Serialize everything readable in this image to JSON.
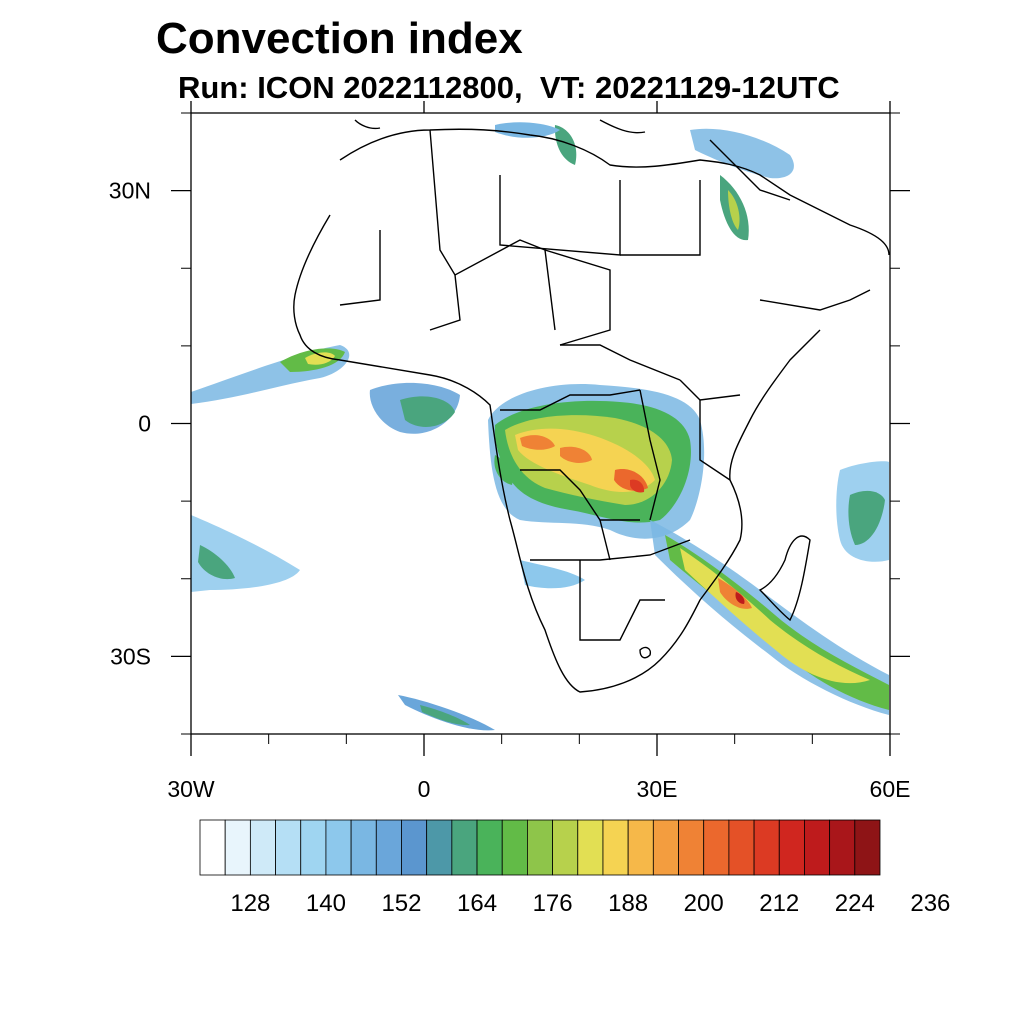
{
  "title": "Convection index",
  "subtitle": "Run: ICON 2022112800,  VT: 20221129-12UTC",
  "map": {
    "lon_range": [
      -30,
      60
    ],
    "lat_range": [
      -40,
      40
    ],
    "lat_labels": [
      {
        "lat": 30,
        "label": "30N"
      },
      {
        "lat": 0,
        "label": "0"
      },
      {
        "lat": -30,
        "label": "30S"
      }
    ],
    "lon_labels": [
      {
        "lon": -30,
        "label": "30W"
      },
      {
        "lon": 0,
        "label": "0"
      },
      {
        "lon": 30,
        "label": "30E"
      },
      {
        "lon": 60,
        "label": "60E"
      }
    ],
    "minor_lat_ticks": [
      40,
      20,
      10,
      -10,
      -20,
      -40
    ],
    "minor_lon_ticks": [
      -20,
      -10,
      10,
      20,
      40,
      50
    ]
  },
  "colorbar": {
    "labels": [
      "128",
      "140",
      "152",
      "164",
      "176",
      "188",
      "200",
      "212",
      "224",
      "236"
    ],
    "colors": [
      "#ffffff",
      "#e8f5fc",
      "#cfeaf8",
      "#b5dff5",
      "#9fd5f1",
      "#8dc8ec",
      "#7ab7e3",
      "#6aa6da",
      "#5b96cf",
      "#4d98a8",
      "#4aa57e",
      "#4ab35a",
      "#62bb47",
      "#8ec54a",
      "#b7d14c",
      "#e2df53",
      "#f5d352",
      "#f6b849",
      "#f39d3f",
      "#ef8235",
      "#eb682d",
      "#e45127",
      "#dc3a23",
      "#d0261f",
      "#be1b1c",
      "#a9161a",
      "#8e1416"
    ]
  }
}
